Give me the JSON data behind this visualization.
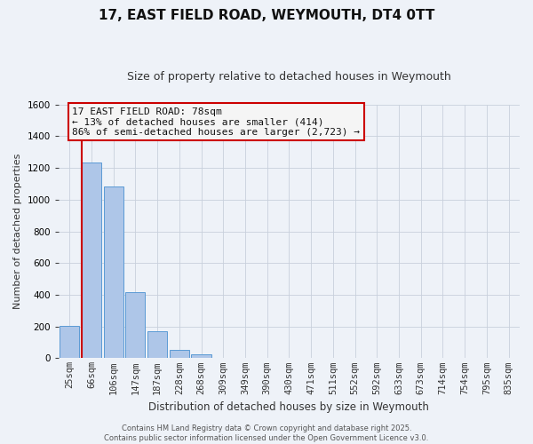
{
  "title": "17, EAST FIELD ROAD, WEYMOUTH, DT4 0TT",
  "subtitle": "Size of property relative to detached houses in Weymouth",
  "xlabel": "Distribution of detached houses by size in Weymouth",
  "ylabel": "Number of detached properties",
  "bar_labels": [
    "25sqm",
    "66sqm",
    "106sqm",
    "147sqm",
    "187sqm",
    "228sqm",
    "268sqm",
    "309sqm",
    "349sqm",
    "390sqm",
    "430sqm",
    "471sqm",
    "511sqm",
    "552sqm",
    "592sqm",
    "633sqm",
    "673sqm",
    "714sqm",
    "754sqm",
    "795sqm",
    "835sqm"
  ],
  "bar_values": [
    205,
    1235,
    1085,
    415,
    170,
    50,
    22,
    0,
    0,
    0,
    0,
    0,
    0,
    0,
    0,
    0,
    0,
    0,
    0,
    0,
    0
  ],
  "bar_color": "#aec6e8",
  "bar_edge_color": "#5b9bd5",
  "property_line_color": "#cc0000",
  "ylim": [
    0,
    1600
  ],
  "yticks": [
    0,
    200,
    400,
    600,
    800,
    1000,
    1200,
    1400,
    1600
  ],
  "annotation_title": "17 EAST FIELD ROAD: 78sqm",
  "annotation_line1": "← 13% of detached houses are smaller (414)",
  "annotation_line2": "86% of semi-detached houses are larger (2,723) →",
  "annotation_box_edge_color": "#cc0000",
  "footer_line1": "Contains HM Land Registry data © Crown copyright and database right 2025.",
  "footer_line2": "Contains public sector information licensed under the Open Government Licence v3.0.",
  "background_color": "#eef2f8",
  "grid_color": "#c8d0dc",
  "title_fontsize": 11,
  "subtitle_fontsize": 9,
  "ylabel_fontsize": 8,
  "xlabel_fontsize": 8.5,
  "tick_fontsize": 7.5,
  "annotation_fontsize": 8,
  "footer_fontsize": 6
}
